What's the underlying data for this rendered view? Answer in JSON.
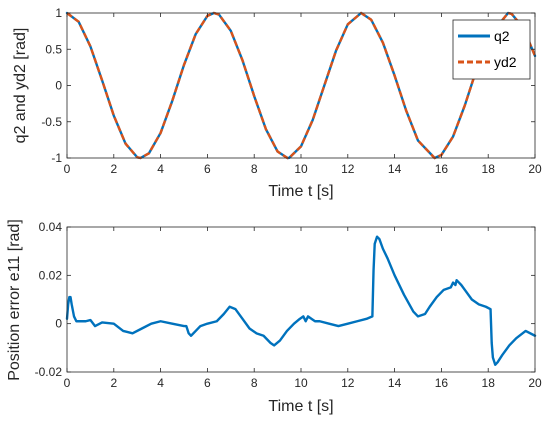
{
  "chart_data": [
    {
      "type": "line",
      "xlabel": "Time t [s]",
      "ylabel": "q2 and yd2 [rad]",
      "xlim": [
        0,
        20
      ],
      "ylim": [
        -1,
        1
      ],
      "xticks": [
        0,
        2,
        4,
        6,
        8,
        10,
        12,
        14,
        16,
        18,
        20
      ],
      "yticks": [
        -1,
        -0.5,
        0,
        0.5,
        1
      ],
      "ytick_labels": [
        "-1",
        "-0.5",
        "0",
        "0.5",
        "1"
      ],
      "grid": false,
      "legend": "top-right",
      "series": [
        {
          "name": "q2",
          "color": "#0072BD",
          "style": "solid",
          "x": [
            0,
            0.5,
            1,
            1.5,
            2,
            2.5,
            3,
            3.14,
            3.5,
            4,
            4.5,
            5,
            5.5,
            6,
            6.28,
            6.5,
            7,
            7.5,
            8,
            8.5,
            9,
            9.42,
            9.5,
            10,
            10.5,
            11,
            11.5,
            12,
            12.57,
            13,
            13.5,
            14,
            14.5,
            15,
            15.71,
            16,
            16.5,
            17,
            17.5,
            18,
            18.85,
            19,
            19.5,
            20
          ],
          "y": [
            1,
            0.878,
            0.54,
            0.071,
            -0.416,
            -0.801,
            -0.99,
            -1,
            -0.936,
            -0.654,
            -0.211,
            0.284,
            0.709,
            0.96,
            1,
            0.977,
            0.754,
            0.347,
            -0.146,
            -0.602,
            -0.911,
            -1,
            -0.997,
            -0.839,
            -0.476,
            0.004,
            0.483,
            0.844,
            1,
            0.907,
            0.591,
            0.137,
            -0.351,
            -0.76,
            -1,
            -0.958,
            -0.703,
            -0.275,
            0.22,
            0.66,
            1,
            0.989,
            0.795,
            0.408
          ]
        },
        {
          "name": "yd2",
          "color": "#D95319",
          "style": "dashed",
          "x": [
            0,
            0.5,
            1,
            1.5,
            2,
            2.5,
            3,
            3.14,
            3.5,
            4,
            4.5,
            5,
            5.5,
            6,
            6.28,
            6.5,
            7,
            7.5,
            8,
            8.5,
            9,
            9.42,
            9.5,
            10,
            10.5,
            11,
            11.5,
            12,
            12.57,
            13,
            13.5,
            14,
            14.5,
            15,
            15.71,
            16,
            16.5,
            17,
            17.5,
            18,
            18.85,
            19,
            19.5,
            20
          ],
          "y": [
            1,
            0.878,
            0.54,
            0.071,
            -0.416,
            -0.801,
            -0.99,
            -1,
            -0.936,
            -0.654,
            -0.211,
            0.284,
            0.709,
            0.96,
            1,
            0.977,
            0.754,
            0.347,
            -0.146,
            -0.602,
            -0.911,
            -1,
            -0.997,
            -0.839,
            -0.476,
            0.004,
            0.483,
            0.844,
            1,
            0.907,
            0.591,
            0.137,
            -0.351,
            -0.76,
            -1,
            -0.958,
            -0.703,
            -0.275,
            0.22,
            0.66,
            1,
            0.989,
            0.795,
            0.408
          ]
        }
      ]
    },
    {
      "type": "line",
      "xlabel": "Time t [s]",
      "ylabel": "Position error e11 [rad]",
      "xlim": [
        0,
        20
      ],
      "ylim": [
        -0.02,
        0.04
      ],
      "xticks": [
        0,
        2,
        4,
        6,
        8,
        10,
        12,
        14,
        16,
        18,
        20
      ],
      "yticks": [
        -0.02,
        0,
        0.02,
        0.04
      ],
      "ytick_labels": [
        "-0.02",
        "0",
        "0.02",
        "0.04"
      ],
      "grid": false,
      "series": [
        {
          "color": "#0072BD",
          "style": "solid",
          "x": [
            0,
            0.05,
            0.1,
            0.15,
            0.2,
            0.3,
            0.4,
            0.6,
            0.8,
            1.0,
            1.2,
            1.5,
            2.0,
            2.4,
            2.8,
            3.2,
            3.6,
            4.0,
            4.5,
            5.0,
            5.1,
            5.2,
            5.3,
            5.5,
            5.7,
            6.0,
            6.4,
            6.7,
            6.95,
            7.2,
            7.5,
            7.8,
            8.1,
            8.4,
            8.7,
            8.85,
            9.1,
            9.4,
            9.7,
            9.95,
            10.1,
            10.2,
            10.3,
            10.45,
            10.6,
            10.8,
            11.2,
            11.6,
            12.0,
            12.4,
            12.8,
            13.05,
            13.1,
            13.15,
            13.25,
            13.35,
            13.5,
            13.7,
            14.0,
            14.4,
            14.8,
            15.0,
            15.3,
            15.5,
            15.8,
            16.1,
            16.4,
            16.5,
            16.6,
            16.65,
            16.75,
            16.85,
            17.0,
            17.3,
            17.6,
            17.9,
            18.1,
            18.15,
            18.2,
            18.3,
            18.4,
            18.6,
            18.9,
            19.2,
            19.6,
            20.0
          ],
          "y": [
            0.002,
            0.008,
            0.011,
            0.011,
            0.008,
            0.003,
            0.001,
            0.001,
            0.001,
            0.0015,
            -0.001,
            0.0005,
            0.0,
            -0.003,
            -0.004,
            -0.002,
            0.0,
            0.001,
            0.0,
            -0.001,
            -0.001,
            -0.004,
            -0.005,
            -0.003,
            -0.001,
            0.0,
            0.001,
            0.004,
            0.007,
            0.006,
            0.002,
            -0.002,
            -0.004,
            -0.005,
            -0.008,
            -0.009,
            -0.007,
            -0.003,
            0.0,
            0.002,
            0.003,
            0.001,
            0.003,
            0.002,
            0.001,
            0.001,
            0.0,
            -0.001,
            0.0,
            0.001,
            0.002,
            0.003,
            0.022,
            0.033,
            0.036,
            0.035,
            0.031,
            0.027,
            0.02,
            0.012,
            0.005,
            0.003,
            0.004,
            0.007,
            0.011,
            0.014,
            0.015,
            0.017,
            0.016,
            0.018,
            0.017,
            0.016,
            0.014,
            0.01,
            0.008,
            0.007,
            0.006,
            -0.008,
            -0.014,
            -0.017,
            -0.016,
            -0.013,
            -0.009,
            -0.006,
            -0.003,
            -0.005
          ]
        }
      ]
    }
  ]
}
